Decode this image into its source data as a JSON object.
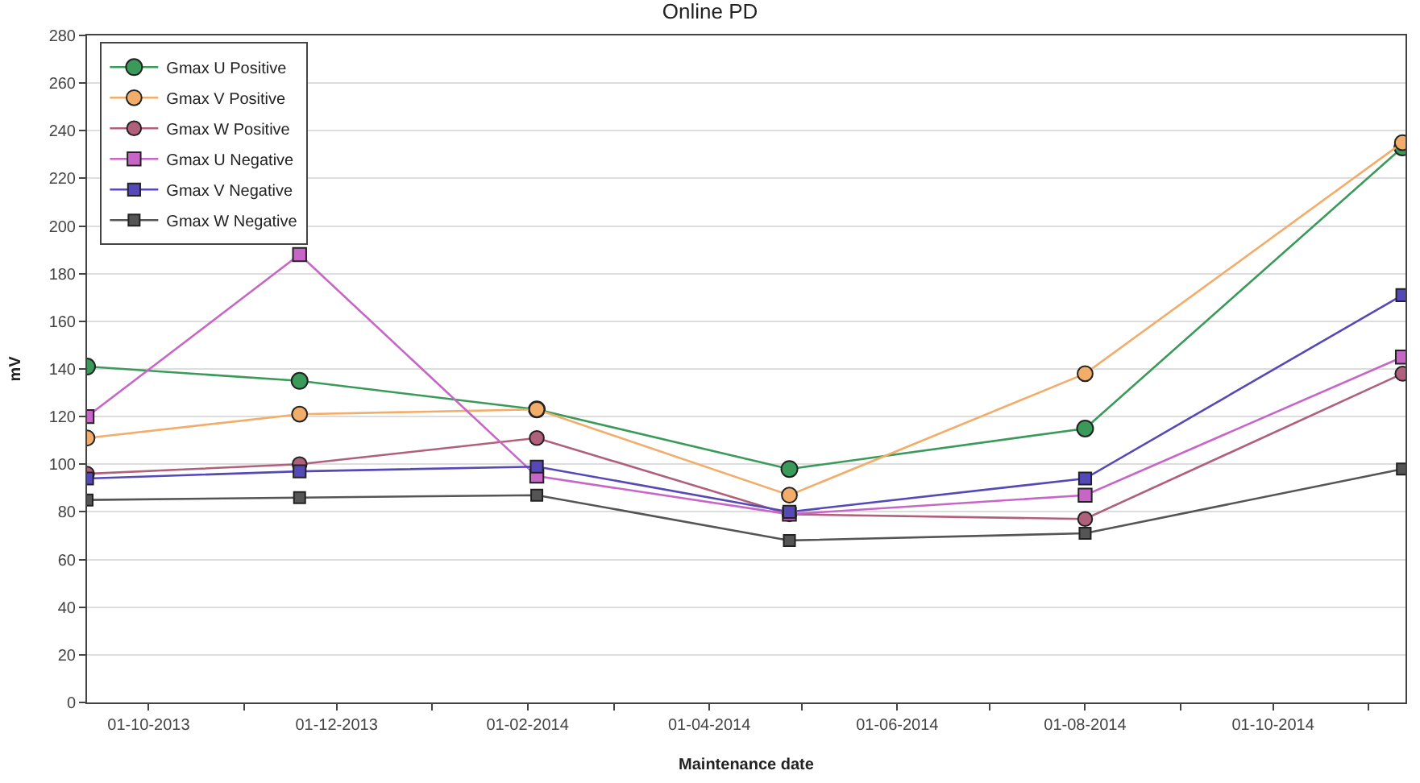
{
  "chart_data": {
    "type": "line",
    "title": "Online PD",
    "xlabel": "Maintenance date",
    "ylabel": "mV",
    "x": [
      "2013-09-11",
      "2013-11-19",
      "2014-02-04",
      "2014-04-27",
      "2014-08-01",
      "2014-11-12"
    ],
    "series": [
      {
        "name": "Gmax U Positive",
        "color": "#3a9a5a",
        "marker": "circle",
        "values": [
          141,
          135,
          123,
          98,
          115,
          233
        ]
      },
      {
        "name": "Gmax V Positive",
        "color": "#f2ad6a",
        "marker": "circle",
        "values": [
          111,
          121,
          123,
          87,
          138,
          235
        ]
      },
      {
        "name": "Gmax W Positive",
        "color": "#b0607a",
        "marker": "circle",
        "values": [
          96,
          100,
          111,
          79,
          77,
          138
        ]
      },
      {
        "name": "Gmax U Negative",
        "color": "#c866c8",
        "marker": "square",
        "values": [
          120,
          188,
          95,
          79,
          87,
          145
        ]
      },
      {
        "name": "Gmax V Negative",
        "color": "#5548b8",
        "marker": "square",
        "values": [
          94,
          97,
          99,
          80,
          94,
          171
        ]
      },
      {
        "name": "Gmax W Negative",
        "color": "#555555",
        "marker": "square",
        "values": [
          85,
          86,
          87,
          68,
          71,
          98
        ]
      }
    ],
    "xlim": [
      "2013-09-11",
      "2014-11-13"
    ],
    "xticks": [
      {
        "value": "2013-10-01",
        "label": "01-10-2013"
      },
      {
        "value": "2013-11-01",
        "label": null
      },
      {
        "value": "2013-12-01",
        "label": "01-12-2013"
      },
      {
        "value": "2014-01-01",
        "label": null
      },
      {
        "value": "2014-02-01",
        "label": "01-02-2014"
      },
      {
        "value": "2014-03-01",
        "label": null
      },
      {
        "value": "2014-04-01",
        "label": "01-04-2014"
      },
      {
        "value": "2014-05-01",
        "label": null
      },
      {
        "value": "2014-06-01",
        "label": "01-06-2014"
      },
      {
        "value": "2014-07-01",
        "label": null
      },
      {
        "value": "2014-08-01",
        "label": "01-08-2014"
      },
      {
        "value": "2014-09-01",
        "label": null
      },
      {
        "value": "2014-10-01",
        "label": "01-10-2014"
      },
      {
        "value": "2014-11-01",
        "label": null
      }
    ],
    "ylim": [
      0,
      280
    ],
    "yticks": [
      0,
      20,
      40,
      60,
      80,
      100,
      120,
      140,
      160,
      180,
      200,
      220,
      240,
      260,
      280
    ],
    "grid": "y",
    "legend": "top left",
    "line_style": "solid"
  }
}
